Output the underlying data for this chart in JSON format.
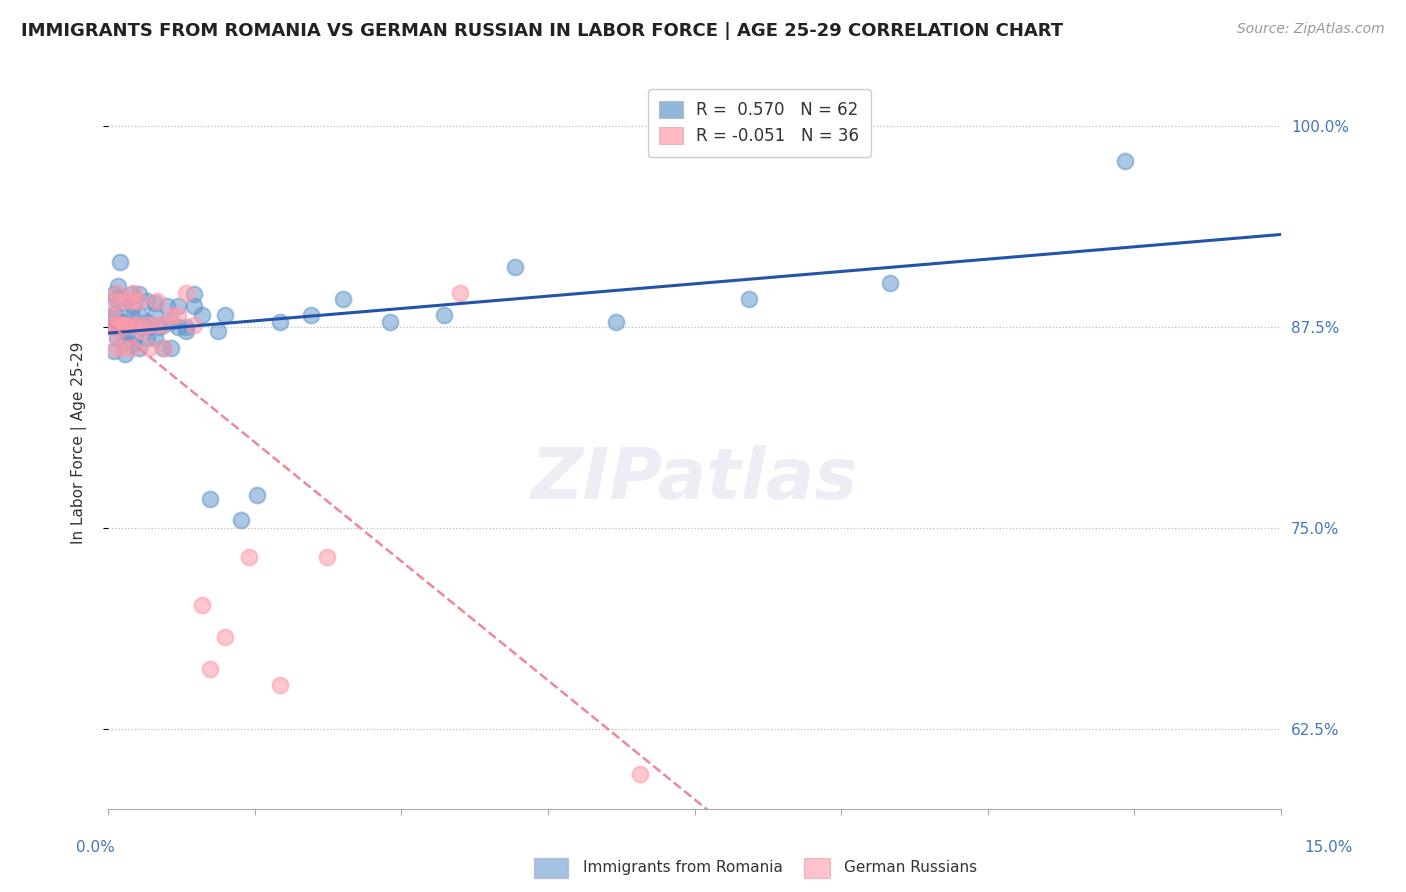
{
  "title": "IMMIGRANTS FROM ROMANIA VS GERMAN RUSSIAN IN LABOR FORCE | AGE 25-29 CORRELATION CHART",
  "source": "Source: ZipAtlas.com",
  "ylabel": "In Labor Force | Age 25-29",
  "x_range": [
    0.0,
    0.15
  ],
  "y_range": [
    0.575,
    1.03
  ],
  "legend_romania": "Immigrants from Romania",
  "legend_german": "German Russians",
  "R_romania": 0.57,
  "N_romania": 62,
  "R_german": -0.051,
  "N_german": 36,
  "color_romania": "#6699CC",
  "color_german": "#FF99AA",
  "romania_x": [
    0.0005,
    0.0006,
    0.0007,
    0.0008,
    0.0009,
    0.001,
    0.001,
    0.0012,
    0.0013,
    0.0015,
    0.0016,
    0.0018,
    0.002,
    0.002,
    0.002,
    0.0022,
    0.0025,
    0.003,
    0.003,
    0.003,
    0.003,
    0.0032,
    0.0035,
    0.004,
    0.004,
    0.004,
    0.0042,
    0.005,
    0.005,
    0.005,
    0.0052,
    0.006,
    0.006,
    0.006,
    0.0065,
    0.007,
    0.007,
    0.0075,
    0.008,
    0.008,
    0.009,
    0.009,
    0.01,
    0.01,
    0.011,
    0.011,
    0.012,
    0.013,
    0.014,
    0.015,
    0.017,
    0.019,
    0.022,
    0.026,
    0.03,
    0.036,
    0.043,
    0.052,
    0.065,
    0.082,
    0.1,
    0.13
  ],
  "romania_y": [
    0.882,
    0.876,
    0.895,
    0.86,
    0.883,
    0.875,
    0.892,
    0.868,
    0.9,
    0.915,
    0.878,
    0.893,
    0.865,
    0.878,
    0.89,
    0.858,
    0.872,
    0.881,
    0.895,
    0.864,
    0.876,
    0.888,
    0.87,
    0.882,
    0.895,
    0.862,
    0.876,
    0.878,
    0.891,
    0.868,
    0.875,
    0.882,
    0.868,
    0.89,
    0.875,
    0.862,
    0.876,
    0.888,
    0.878,
    0.862,
    0.875,
    0.888,
    0.872,
    0.875,
    0.888,
    0.895,
    0.882,
    0.768,
    0.872,
    0.882,
    0.755,
    0.77,
    0.878,
    0.882,
    0.892,
    0.878,
    0.882,
    0.912,
    0.878,
    0.892,
    0.902,
    0.978
  ],
  "german_x": [
    0.0005,
    0.0007,
    0.0009,
    0.001,
    0.001,
    0.0012,
    0.0015,
    0.0018,
    0.002,
    0.002,
    0.0022,
    0.003,
    0.003,
    0.003,
    0.0032,
    0.004,
    0.004,
    0.0042,
    0.005,
    0.0052,
    0.006,
    0.0062,
    0.007,
    0.0072,
    0.008,
    0.009,
    0.01,
    0.011,
    0.012,
    0.013,
    0.015,
    0.018,
    0.022,
    0.028,
    0.045,
    0.068
  ],
  "german_y": [
    0.882,
    0.876,
    0.891,
    0.862,
    0.872,
    0.896,
    0.876,
    0.862,
    0.891,
    0.876,
    0.876,
    0.862,
    0.876,
    0.891,
    0.896,
    0.876,
    0.891,
    0.872,
    0.876,
    0.862,
    0.876,
    0.891,
    0.876,
    0.862,
    0.882,
    0.882,
    0.896,
    0.876,
    0.702,
    0.662,
    0.682,
    0.732,
    0.652,
    0.732,
    0.896,
    0.597
  ]
}
